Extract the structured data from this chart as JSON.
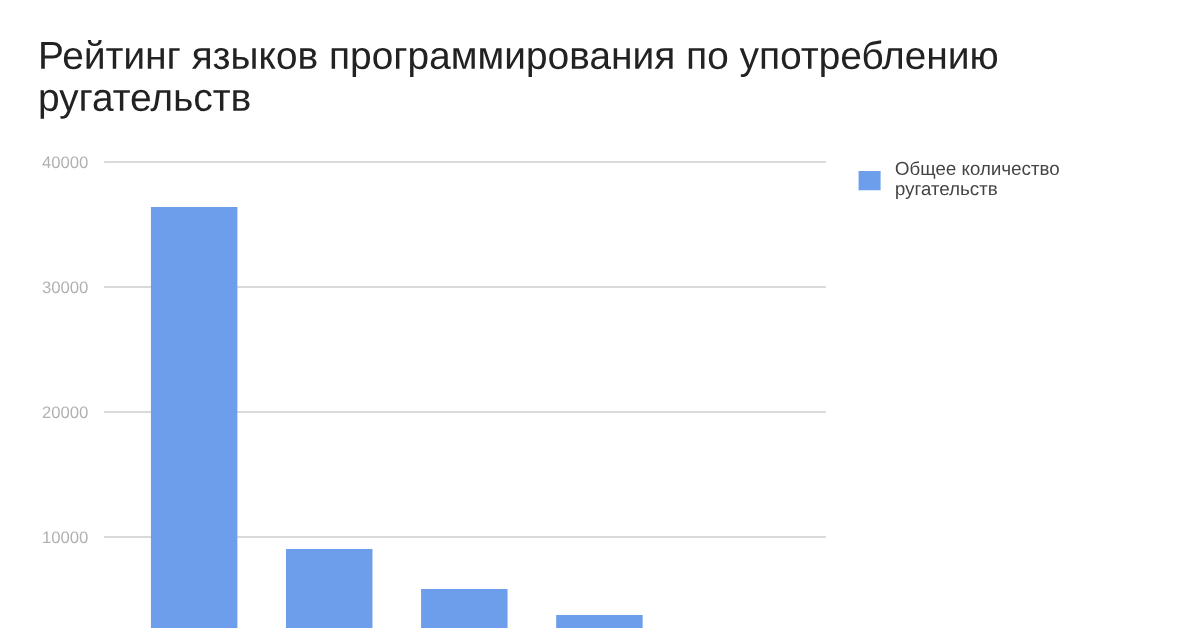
{
  "chart_data": {
    "type": "bar",
    "title": "Рейтинг языков программирования по употреблению ругательств",
    "categories": [
      null,
      null,
      null,
      null
    ],
    "series": [
      {
        "name": "Общее количество ругательств",
        "color": "#6d9eeb",
        "values": [
          36400,
          9040,
          5840,
          3760
        ]
      }
    ],
    "ylim": [
      0,
      40000
    ],
    "yticks": [
      10000,
      20000,
      30000,
      40000
    ],
    "grid": "y",
    "legend": "top right",
    "tick_labels": "y"
  }
}
